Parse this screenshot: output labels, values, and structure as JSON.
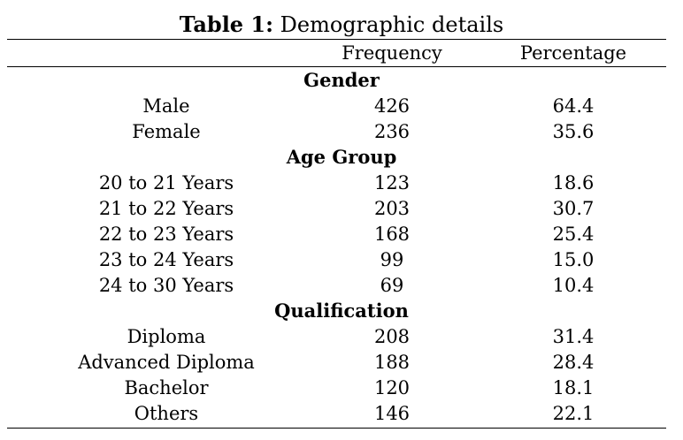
{
  "caption": {
    "label": "Table 1:",
    "text": "Demographic details"
  },
  "columns": {
    "label": "",
    "frequency": "Frequency",
    "percentage": "Percentage"
  },
  "sections": [
    {
      "title": "Gender",
      "rows": [
        {
          "label": "Male",
          "frequency": "426",
          "percentage": "64.4"
        },
        {
          "label": "Female",
          "frequency": "236",
          "percentage": "35.6"
        }
      ]
    },
    {
      "title": "Age Group",
      "rows": [
        {
          "label": "20 to 21 Years",
          "frequency": "123",
          "percentage": "18.6"
        },
        {
          "label": "21 to 22 Years",
          "frequency": "203",
          "percentage": "30.7"
        },
        {
          "label": "22 to 23 Years",
          "frequency": "168",
          "percentage": "25.4"
        },
        {
          "label": "23 to 24 Years",
          "frequency": "99",
          "percentage": "15.0"
        },
        {
          "label": "24 to 30 Years",
          "frequency": "69",
          "percentage": "10.4"
        }
      ]
    },
    {
      "title": "Qualification",
      "rows": [
        {
          "label": "Diploma",
          "frequency": "208",
          "percentage": "31.4"
        },
        {
          "label": "Advanced Diploma",
          "frequency": "188",
          "percentage": "28.4"
        },
        {
          "label": "Bachelor",
          "frequency": "120",
          "percentage": "18.1"
        },
        {
          "label": "Others",
          "frequency": "146",
          "percentage": "22.1"
        }
      ]
    }
  ]
}
